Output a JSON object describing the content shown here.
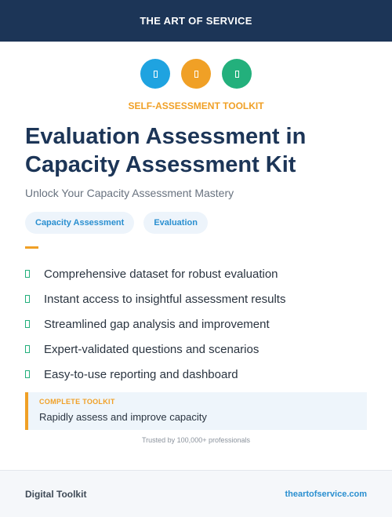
{
  "header": {
    "brand": "THE ART OF SERVICE"
  },
  "icons": [
    {
      "name": "blue-icon",
      "color": "#1fa3e0"
    },
    {
      "name": "orange-icon",
      "color": "#f0a026"
    },
    {
      "name": "green-icon",
      "color": "#23b07c"
    }
  ],
  "kicker": "SELF-ASSESSMENT TOOLKIT",
  "title": "Evaluation Assessment in Capacity Assessment Kit",
  "subtitle": "Unlock Your Capacity Assessment Mastery",
  "tags": [
    "Capacity Assessment",
    "Evaluation"
  ],
  "features": [
    "Comprehensive dataset for robust evaluation",
    "Instant access to insightful assessment results",
    "Streamlined gap analysis and improvement",
    "Expert-validated questions and scenarios",
    "Easy-to-use reporting and dashboard"
  ],
  "callout": {
    "label": "COMPLETE TOOLKIT",
    "text": "Rapidly assess and improve capacity"
  },
  "trust": "Trusted by 100,000+ professionals",
  "footer": {
    "left": "Digital Toolkit",
    "right": "theartofservice.com"
  },
  "colors": {
    "navy": "#1c3557",
    "accent": "#f0a026",
    "link": "#2a8fd0",
    "check": "#23b07c"
  }
}
